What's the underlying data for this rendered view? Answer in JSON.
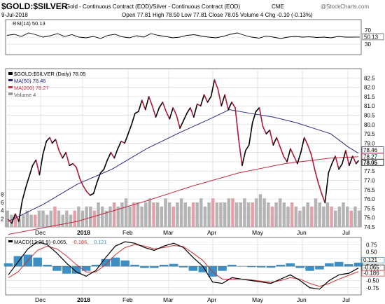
{
  "header": {
    "symbol": "$GOLD:$SILVER",
    "description": "Gold - Continuous Contract (EOD)/Silver - Continuous Contract (EOD)",
    "exchange": "CME",
    "date": "9-Jul-2018",
    "watermark": "@StockCharts.com",
    "quote": "Open 77.81  High 78.50  Low 77.81  Close 78.05  Volume 4  Chg -0.10 (-0.13%)"
  },
  "chart_data": [
    {
      "type": "line",
      "name": "rsi_panel",
      "legend": "RSI(14) 50.13",
      "ylim": [
        0,
        100
      ],
      "yticks": [
        30,
        50,
        70
      ],
      "last_label": "50.13",
      "values": [
        55,
        58,
        52,
        62,
        57,
        50,
        54,
        60,
        52,
        57,
        50,
        48,
        52,
        46,
        55,
        58,
        51,
        48,
        54,
        50,
        60,
        55,
        52,
        48,
        50,
        55,
        57,
        53,
        50,
        48,
        52,
        58,
        62,
        55,
        50,
        47,
        53,
        50,
        46,
        50,
        52,
        50,
        51,
        49,
        50,
        48,
        52,
        50,
        50,
        50.13
      ]
    },
    {
      "type": "line",
      "name": "price_panel",
      "legend": "$GOLD:$SILVER (Daily) 78.05",
      "legend_ma50": "MA(50) 78.46",
      "legend_ma200": "MA(200) 78.27",
      "legend_volume": "Volume 4",
      "x_labels": [
        "Dec",
        "2018",
        "Feb",
        "Mar",
        "Apr",
        "May",
        "Jun",
        "Jul"
      ],
      "ylim": [
        74.5,
        83.0
      ],
      "yticks": [
        74.5,
        75.0,
        75.5,
        76.0,
        76.5,
        77.0,
        77.5,
        78.0,
        78.5,
        79.0,
        79.5,
        80.0,
        80.5,
        81.0,
        81.5,
        82.0,
        82.5
      ],
      "volume_ticks": [
        "2",
        "4",
        "6",
        "8"
      ],
      "volume_ylim": [
        0,
        12
      ],
      "price": [
        [
          0,
          74.9
        ],
        [
          3,
          74.7
        ],
        [
          6,
          75.2
        ],
        [
          9,
          74.8
        ],
        [
          12,
          75.9
        ],
        [
          15,
          76.6
        ],
        [
          18,
          77.2
        ],
        [
          21,
          77.8
        ],
        [
          24,
          78.1
        ],
        [
          27,
          77.3
        ],
        [
          30,
          78.4
        ],
        [
          33,
          79.1
        ],
        [
          36,
          79.3
        ],
        [
          38,
          79.0
        ],
        [
          41,
          79.2
        ],
        [
          44,
          78.6
        ],
        [
          47,
          78.2
        ],
        [
          50,
          78.5
        ],
        [
          53,
          77.8
        ],
        [
          56,
          77.9
        ],
        [
          59,
          77.7
        ],
        [
          62,
          77.1
        ],
        [
          65,
          76.7
        ],
        [
          68,
          76.4
        ],
        [
          71,
          76.2
        ],
        [
          74,
          76.3
        ],
        [
          77,
          76.9
        ],
        [
          80,
          77.4
        ],
        [
          83,
          77.6
        ],
        [
          86,
          78.1
        ],
        [
          89,
          78.5
        ],
        [
          92,
          78.2
        ],
        [
          95,
          78.7
        ],
        [
          98,
          79.1
        ],
        [
          101,
          79.0
        ],
        [
          104,
          79.5
        ],
        [
          107,
          80.0
        ],
        [
          110,
          80.6
        ],
        [
          113,
          80.7
        ],
        [
          116,
          81.3
        ],
        [
          119,
          80.8
        ],
        [
          122,
          81.5
        ],
        [
          125,
          81.0
        ],
        [
          128,
          80.4
        ],
        [
          131,
          80.9
        ],
        [
          134,
          81.2
        ],
        [
          137,
          80.7
        ],
        [
          140,
          80.3
        ],
        [
          143,
          80.9
        ],
        [
          146,
          80.5
        ],
        [
          149,
          79.8
        ],
        [
          152,
          80.2
        ],
        [
          155,
          80.6
        ],
        [
          158,
          80.9
        ],
        [
          161,
          80.4
        ],
        [
          164,
          81.1
        ],
        [
          167,
          81.0
        ],
        [
          170,
          81.6
        ],
        [
          173,
          81.2
        ],
        [
          176,
          81.5
        ],
        [
          179,
          82.4
        ],
        [
          182,
          81.9
        ],
        [
          185,
          81.0
        ],
        [
          188,
          81.6
        ],
        [
          191,
          80.8
        ],
        [
          194,
          81.2
        ],
        [
          197,
          80.9
        ],
        [
          200,
          79.2
        ],
        [
          203,
          77.8
        ],
        [
          206,
          78.6
        ],
        [
          209,
          78.9
        ],
        [
          212,
          80.1
        ],
        [
          215,
          80.7
        ],
        [
          218,
          80.9
        ],
        [
          221,
          79.9
        ],
        [
          224,
          79.5
        ],
        [
          227,
          79.7
        ],
        [
          230,
          78.9
        ],
        [
          233,
          79.3
        ],
        [
          236,
          78.8
        ],
        [
          239,
          78.3
        ],
        [
          242,
          78.0
        ],
        [
          245,
          78.7
        ],
        [
          248,
          78.3
        ],
        [
          251,
          77.9
        ],
        [
          254,
          78.5
        ],
        [
          257,
          79.3
        ],
        [
          260,
          78.9
        ],
        [
          263,
          78.4
        ],
        [
          266,
          77.6
        ],
        [
          269,
          76.9
        ],
        [
          272,
          76.3
        ],
        [
          275,
          75.8
        ],
        [
          278,
          77.4
        ],
        [
          281,
          77.9
        ],
        [
          284,
          78.3
        ],
        [
          287,
          77.6
        ],
        [
          290,
          77.9
        ],
        [
          293,
          78.6
        ],
        [
          296,
          77.8
        ],
        [
          299,
          78.3
        ],
        [
          302,
          77.9
        ],
        [
          304,
          78.05
        ]
      ],
      "ma50": [
        [
          0,
          74.8
        ],
        [
          30,
          75.7
        ],
        [
          60,
          76.8
        ],
        [
          90,
          77.6
        ],
        [
          120,
          78.7
        ],
        [
          150,
          79.6
        ],
        [
          175,
          80.3
        ],
        [
          192,
          80.8
        ],
        [
          210,
          80.6
        ],
        [
          230,
          80.4
        ],
        [
          250,
          80.1
        ],
        [
          265,
          79.8
        ],
        [
          280,
          79.5
        ],
        [
          295,
          78.8
        ],
        [
          304,
          78.46
        ]
      ],
      "ma200": [
        [
          0,
          74.1
        ],
        [
          60,
          74.8
        ],
        [
          120,
          75.9
        ],
        [
          160,
          76.7
        ],
        [
          200,
          77.4
        ],
        [
          240,
          77.9
        ],
        [
          280,
          78.2
        ],
        [
          304,
          78.27
        ]
      ],
      "volume": [
        4,
        3,
        3,
        2,
        3,
        4,
        3,
        3,
        4,
        4,
        3,
        4,
        5,
        4,
        3,
        4,
        3,
        4,
        5,
        4,
        5,
        5,
        4,
        6,
        5,
        4,
        5,
        6,
        5,
        6,
        7,
        5,
        6,
        6,
        5,
        6,
        7,
        6,
        6,
        5,
        7,
        6,
        5,
        6,
        7,
        6,
        5,
        6,
        6,
        7,
        5,
        6,
        7,
        6,
        6,
        6,
        7,
        7,
        6,
        6,
        7,
        6,
        6,
        7,
        8,
        7,
        6,
        5,
        6,
        7,
        6,
        5,
        6,
        5,
        4,
        5,
        6,
        5,
        7,
        6,
        5,
        6,
        5,
        4,
        5,
        6,
        5,
        4,
        5,
        4
      ],
      "last_price_label": "78.05",
      "ma50_label": "78.46",
      "ma200_label": "78.27"
    },
    {
      "type": "line",
      "name": "macd_panel",
      "legend_macd": "MACD(12,26,9)",
      "legend_macd_value": "-0.065,",
      "legend_signal_value": "-0.186,",
      "legend_hist_value": "0.121",
      "ylim": [
        -1.0,
        1.0
      ],
      "yticks": [
        -0.75,
        -0.5,
        -0.25,
        0.0,
        0.25,
        0.5,
        0.75
      ],
      "value_labels": [
        "0.121",
        "-0.065",
        "-0.186"
      ],
      "x_labels": [
        "Dec",
        "2018",
        "Feb",
        "Mar",
        "Apr",
        "May",
        "Jun",
        "Jul"
      ],
      "macd": [
        -0.3,
        0.15,
        0.6,
        0.85,
        0.75,
        0.45,
        0.1,
        -0.2,
        -0.35,
        -0.15,
        0.3,
        0.7,
        0.85,
        0.8,
        0.65,
        0.55,
        0.7,
        0.8,
        0.65,
        0.3,
        0.0,
        -0.55,
        -0.6,
        -0.4,
        -0.45,
        -0.5,
        -0.55,
        -0.6,
        -0.45,
        -0.3,
        -0.5,
        -0.75,
        -0.8,
        -0.5,
        -0.3,
        -0.25,
        -0.065
      ],
      "signal": [
        -0.4,
        -0.2,
        0.2,
        0.55,
        0.7,
        0.6,
        0.35,
        0.05,
        -0.2,
        -0.2,
        0.05,
        0.4,
        0.65,
        0.75,
        0.7,
        0.6,
        0.65,
        0.72,
        0.68,
        0.45,
        0.2,
        -0.2,
        -0.45,
        -0.45,
        -0.45,
        -0.48,
        -0.52,
        -0.56,
        -0.5,
        -0.4,
        -0.45,
        -0.6,
        -0.7,
        -0.6,
        -0.45,
        -0.32,
        -0.186
      ]
    }
  ]
}
